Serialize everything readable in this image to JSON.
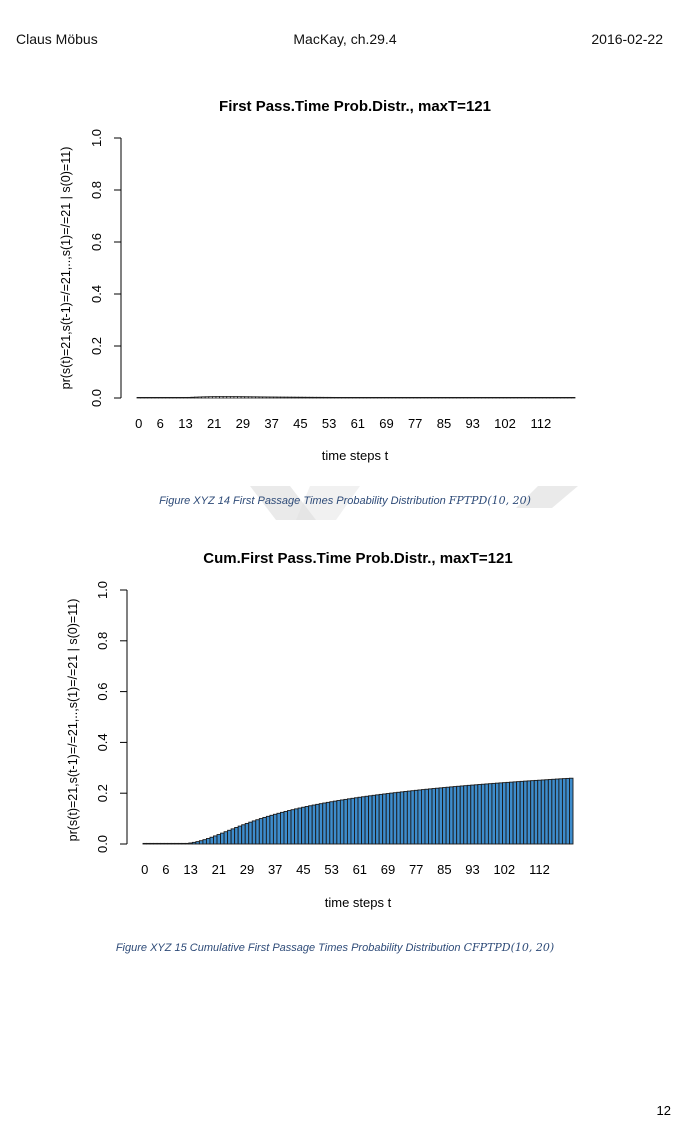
{
  "header": {
    "author": "Claus Möbus",
    "reference": "MacKay, ch.29.4",
    "date": "2016-02-22"
  },
  "page_number": "12",
  "figures": [
    {
      "caption_text": "Figure XYZ 14 First Passage Times Probability Distribution ",
      "caption_math": "FPTPD(10, 20)"
    },
    {
      "caption_text": "Figure XYZ 15  Cumulative First Passage Times Probability Distribution ",
      "caption_math": "CFPTPD(10, 20)"
    }
  ],
  "chart_data": [
    {
      "type": "bar",
      "title": "First Pass.Time Prob.Distr., maxT=121",
      "xlabel": "time steps t",
      "ylabel": "pr(s(t)=21,s(t-1)=/=21,..,s(1)=/=21 | s(0)=11)",
      "x_tick_labels": [
        "0",
        "6",
        "13",
        "21",
        "29",
        "37",
        "45",
        "53",
        "61",
        "69",
        "77",
        "85",
        "93",
        "102",
        "112"
      ],
      "y_ticks": [
        "0.0",
        "0.2",
        "0.4",
        "0.6",
        "0.8",
        "1.0"
      ],
      "ylim": [
        0,
        1
      ],
      "bar_count": 122,
      "bar_color": "#ffffff",
      "values": [
        0,
        0,
        0,
        0,
        0,
        0,
        0,
        0,
        0,
        0,
        0.0003,
        0.0007,
        0.0012,
        0.0018,
        0.0024,
        0.003,
        0.0036,
        0.0041,
        0.0046,
        0.0049,
        0.0052,
        0.0054,
        0.0056,
        0.0056,
        0.0056,
        0.0056,
        0.0055,
        0.0054,
        0.0053,
        0.0052,
        0.005,
        0.0049,
        0.0047,
        0.0046,
        0.0044,
        0.0043,
        0.0041,
        0.004,
        0.0039,
        0.0037,
        0.0036,
        0.0035,
        0.0034,
        0.0033,
        0.0032,
        0.0031,
        0.003,
        0.0029,
        0.0028,
        0.0027,
        0.0027,
        0.0026,
        0.0025,
        0.0025,
        0.0024,
        0.0023,
        0.0023,
        0.0022,
        0.0022,
        0.0021,
        0.0021,
        0.002,
        0.002,
        0.0019,
        0.0019,
        0.0019,
        0.0018,
        0.0018,
        0.0017,
        0.0017,
        0.0017,
        0.0016,
        0.0016,
        0.0016,
        0.0016,
        0.0015,
        0.0015,
        0.0015,
        0.0015,
        0.0014,
        0.0014,
        0.0014,
        0.0014,
        0.0013,
        0.0013,
        0.0013,
        0.0013,
        0.0013,
        0.0012,
        0.0012,
        0.0012,
        0.0012,
        0.0012,
        0.0011,
        0.0011,
        0.0011,
        0.0011,
        0.0011,
        0.0011,
        0.0011,
        0.001,
        0.001,
        0.001,
        0.001,
        0.001,
        0.001,
        0.001,
        0.001,
        0.001,
        0.0009,
        0.0009,
        0.0009,
        0.0009,
        0.0009,
        0.0009,
        0.0009,
        0.0009,
        0.0009,
        0.0009,
        0.0008,
        0.0008,
        0.0008
      ]
    },
    {
      "type": "bar",
      "title": "Cum.First Pass.Time Prob.Distr., maxT=121",
      "xlabel": "time steps t",
      "ylabel": "pr(s(t)=21,s(t-1)=/=21,..,s(1)=/=21 | s(0)=11)",
      "x_tick_labels": [
        "0",
        "6",
        "13",
        "21",
        "29",
        "37",
        "45",
        "53",
        "61",
        "69",
        "77",
        "85",
        "93",
        "102",
        "112"
      ],
      "y_ticks": [
        "0.0",
        "0.2",
        "0.4",
        "0.6",
        "0.8",
        "1.0"
      ],
      "ylim": [
        0,
        1
      ],
      "bar_count": 122,
      "bar_color": "#3d8ccc",
      "values": [
        0,
        0,
        0,
        0,
        0,
        0,
        0,
        0,
        0,
        0,
        0.0003,
        0.001,
        0.0022,
        0.004,
        0.0064,
        0.0094,
        0.013,
        0.0171,
        0.0217,
        0.0266,
        0.0318,
        0.0372,
        0.0428,
        0.0484,
        0.054,
        0.0596,
        0.0651,
        0.0705,
        0.0758,
        0.081,
        0.086,
        0.0909,
        0.0956,
        0.1002,
        0.1046,
        0.1089,
        0.113,
        0.117,
        0.1209,
        0.1246,
        0.1282,
        0.1317,
        0.1351,
        0.1384,
        0.1416,
        0.1447,
        0.1477,
        0.1506,
        0.1534,
        0.1561,
        0.1588,
        0.1614,
        0.1639,
        0.1664,
        0.1688,
        0.1711,
        0.1734,
        0.1756,
        0.1778,
        0.1799,
        0.182,
        0.184,
        0.186,
        0.1879,
        0.1898,
        0.1917,
        0.1935,
        0.1953,
        0.197,
        0.1987,
        0.2004,
        0.202,
        0.2036,
        0.2052,
        0.2068,
        0.2083,
        0.2098,
        0.2113,
        0.2128,
        0.2142,
        0.2156,
        0.217,
        0.2184,
        0.2197,
        0.221,
        0.2223,
        0.2236,
        0.2249,
        0.2261,
        0.2273,
        0.2285,
        0.2297,
        0.2309,
        0.232,
        0.2331,
        0.2342,
        0.2353,
        0.2364,
        0.2375,
        0.2386,
        0.2396,
        0.2406,
        0.2416,
        0.2426,
        0.2436,
        0.2446,
        0.2456,
        0.2466,
        0.2476,
        0.2485,
        0.2494,
        0.2503,
        0.2512,
        0.2521,
        0.253,
        0.2539,
        0.2548,
        0.2557,
        0.2566,
        0.2574,
        0.2582,
        0.259
      ]
    }
  ]
}
